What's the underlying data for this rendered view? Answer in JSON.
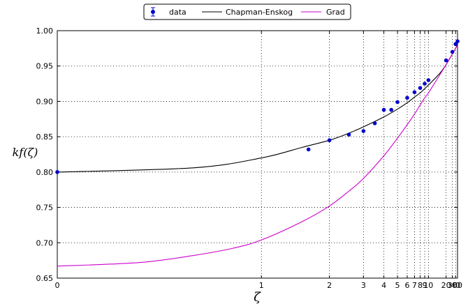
{
  "chart_data": {
    "type": "scatter",
    "title": "",
    "xlabel": "ζ",
    "ylabel": "kf(ζ)",
    "xscale": "1/(1+ζ)",
    "xlim": [
      0,
      50
    ],
    "ylim": [
      0.65,
      1.0
    ],
    "grid": true,
    "legend_position": "top-center",
    "x_ticks": [
      "0",
      "1",
      "2",
      "3",
      "4",
      "5",
      "6",
      "7",
      "8",
      "9",
      "10",
      "20",
      "30",
      "40",
      "50"
    ],
    "y_ticks": [
      "0.65",
      "0.70",
      "0.75",
      "0.80",
      "0.85",
      "0.90",
      "0.95",
      "1.00"
    ],
    "series": [
      {
        "name": "data",
        "kind": "points-with-errorbars",
        "color": "#0000cc",
        "x": [
          0,
          1.6,
          2,
          2.5,
          3,
          3.5,
          4,
          4.5,
          5,
          6,
          7,
          8,
          9,
          10,
          20,
          30,
          40,
          50
        ],
        "y": [
          0.8,
          0.832,
          0.845,
          0.853,
          0.858,
          0.869,
          0.888,
          0.888,
          0.899,
          0.905,
          0.913,
          0.919,
          0.925,
          0.93,
          0.958,
          0.97,
          0.981,
          0.985
        ]
      },
      {
        "name": "Chapman-Enskog",
        "kind": "line",
        "color": "#000000",
        "x": [
          0,
          0.5,
          1,
          1.5,
          2,
          2.5,
          3,
          4,
          5,
          6,
          7,
          8,
          9,
          10,
          15,
          20,
          30,
          40,
          50
        ],
        "y": [
          0.8,
          0.806,
          0.82,
          0.835,
          0.845,
          0.855,
          0.864,
          0.878,
          0.889,
          0.898,
          0.906,
          0.912,
          0.918,
          0.923,
          0.94,
          0.952,
          0.967,
          0.975,
          0.98
        ]
      },
      {
        "name": "Grad",
        "kind": "line",
        "color": "#cc00cc",
        "x": [
          0,
          0.25,
          0.5,
          0.75,
          1,
          1.5,
          2,
          2.5,
          3,
          4,
          5,
          6,
          7,
          8,
          9,
          10,
          15,
          20,
          30,
          40,
          50
        ],
        "y": [
          0.667,
          0.672,
          0.682,
          0.692,
          0.704,
          0.73,
          0.752,
          0.773,
          0.791,
          0.823,
          0.848,
          0.867,
          0.882,
          0.895,
          0.905,
          0.912,
          0.938,
          0.952,
          0.967,
          0.975,
          0.979
        ]
      }
    ]
  }
}
